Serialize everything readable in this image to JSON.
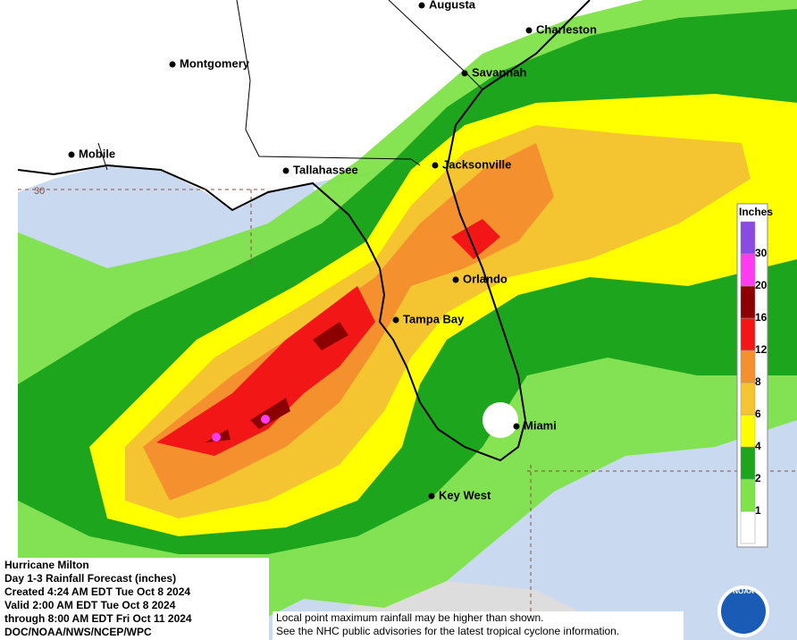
{
  "map": {
    "cities": [
      "Augusta",
      "Charleston",
      "Montgomery",
      "Savannah",
      "Mobile",
      "Tallahassee",
      "Jacksonville",
      "Orlando",
      "Tampa Bay",
      "Miami",
      "Key West"
    ],
    "latitude_label": "30",
    "legend": {
      "title": "Inches",
      "labels": [
        "1",
        "2",
        "4",
        "6",
        "8",
        "12",
        "16",
        "20",
        "30"
      ],
      "colors": [
        "#ffffff",
        "#7fe34a",
        "#1ea51e",
        "#ffff00",
        "#f5c431",
        "#f5902f",
        "#f21616",
        "#8b0000",
        "#ff3cf2",
        "#8a4be2"
      ]
    },
    "info": [
      "Hurricane Milton",
      "Day 1-3 Rainfall Forecast (inches)",
      "Created 4:24 AM EDT Tue Oct 8 2024",
      "Valid 2:00 AM EDT Tue Oct 8 2024",
      "through 8:00 AM EDT Fri Oct 11 2024",
      "DOC/NOAA/NWS/NCEP/WPC"
    ],
    "footnote": [
      "Local point maximum rainfall may be higher than shown.",
      "See the NHC public advisories for the latest tropical cyclone information."
    ],
    "logo": "NOAA"
  }
}
